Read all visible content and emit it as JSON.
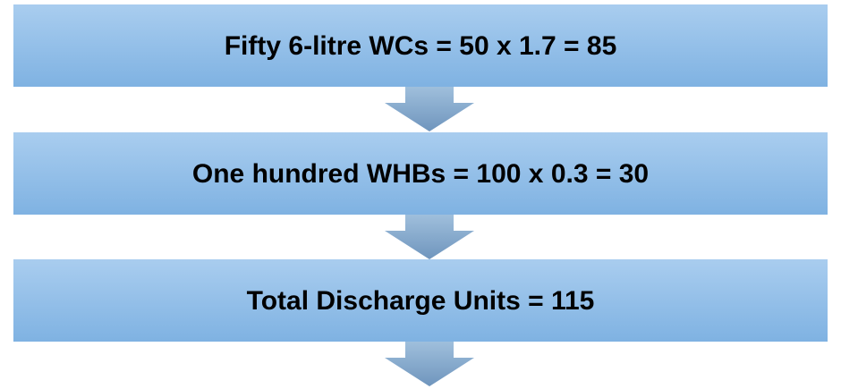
{
  "nodes": [
    {
      "label": "Fifty 6-litre WCs = 50 x 1.7 = 85"
    },
    {
      "label": "One hundred WHBs = 100 x 0.3 = 30"
    },
    {
      "label": "Total Discharge Units = 115"
    }
  ]
}
